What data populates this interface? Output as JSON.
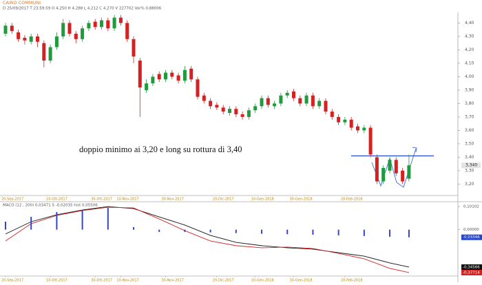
{
  "chart_data": [
    {
      "type": "candlestick",
      "title": "CAIRO COMMUNI",
      "subtitle": "D 25/09/2017  T 23:59:59  O 4,250  H 4,288  L 4,212  C 4,270  V 227702  Var% 0,88006",
      "annotation": "doppio minimo ai 3,20 e long su rottura di 3,40",
      "categories": [
        "20-Sep-2017",
        null,
        null,
        null,
        null,
        null,
        null,
        "10-Ott-2017",
        null,
        null,
        null,
        null,
        null,
        null,
        "30-Ott-2017",
        null,
        null,
        null,
        "10-Nov-2017",
        null,
        null,
        null,
        null,
        null,
        null,
        "30-Nov-2017",
        null,
        null,
        null,
        null,
        null,
        null,
        null,
        "20-Dic-2017",
        null,
        null,
        null,
        null,
        null,
        "10-Gen-2018",
        null,
        null,
        null,
        null,
        null,
        "30-Gen-2018",
        null,
        null,
        null,
        null,
        null,
        null,
        null,
        "20-Feb-2018",
        null,
        null,
        null,
        null,
        null,
        null,
        null,
        null,
        null,
        null
      ],
      "open": [
        4.32,
        4.38,
        4.33,
        4.29,
        4.26,
        4.3,
        4.25,
        4.12,
        4.22,
        4.3,
        4.4,
        4.32,
        4.28,
        4.36,
        4.41,
        4.37,
        4.42,
        4.36,
        4.44,
        4.4,
        4.28,
        4.12,
        3.9,
        3.95,
        4.02,
        3.98,
        4.03,
        4.01,
        3.97,
        4.06,
        3.98,
        3.86,
        3.82,
        3.79,
        3.77,
        3.73,
        3.76,
        3.72,
        3.7,
        3.75,
        3.78,
        3.84,
        3.78,
        3.8,
        3.86,
        3.89,
        3.84,
        3.8,
        3.86,
        3.78,
        3.82,
        3.74,
        3.7,
        3.66,
        3.68,
        3.63,
        3.6,
        3.62,
        3.4,
        3.22,
        3.3,
        3.38,
        3.3,
        3.24
      ],
      "high": [
        4.4,
        4.4,
        4.35,
        4.31,
        4.32,
        4.32,
        4.27,
        4.24,
        4.33,
        4.43,
        4.42,
        4.34,
        4.38,
        4.42,
        4.43,
        4.44,
        4.44,
        4.46,
        4.46,
        4.42,
        4.3,
        4.14,
        3.98,
        4.02,
        4.04,
        4.05,
        4.05,
        4.03,
        4.08,
        4.08,
        4.0,
        3.88,
        3.84,
        3.81,
        3.79,
        3.78,
        3.78,
        3.74,
        3.77,
        3.8,
        3.86,
        3.86,
        3.82,
        3.88,
        3.9,
        3.91,
        3.86,
        3.88,
        3.88,
        3.84,
        3.84,
        3.76,
        3.72,
        3.7,
        3.7,
        3.65,
        3.64,
        3.64,
        3.42,
        3.34,
        3.4,
        3.4,
        3.32,
        3.42
      ],
      "low": [
        4.3,
        4.32,
        4.26,
        4.24,
        4.24,
        4.22,
        4.07,
        4.1,
        4.2,
        4.28,
        4.3,
        4.25,
        4.26,
        4.34,
        4.35,
        4.35,
        4.34,
        4.34,
        4.38,
        4.26,
        4.1,
        3.7,
        3.88,
        3.93,
        3.96,
        3.96,
        3.98,
        3.95,
        3.95,
        3.96,
        3.83,
        3.8,
        3.76,
        3.75,
        3.72,
        3.71,
        3.7,
        3.68,
        3.68,
        3.73,
        3.76,
        3.77,
        3.76,
        3.78,
        3.84,
        3.82,
        3.78,
        3.78,
        3.76,
        3.76,
        3.72,
        3.68,
        3.64,
        3.64,
        3.6,
        3.58,
        3.58,
        3.4,
        3.2,
        3.2,
        3.28,
        3.26,
        3.2,
        3.22
      ],
      "close": [
        4.38,
        4.34,
        4.28,
        4.27,
        4.3,
        4.26,
        4.12,
        4.22,
        4.3,
        4.4,
        4.32,
        4.28,
        4.36,
        4.4,
        4.37,
        4.42,
        4.36,
        4.44,
        4.4,
        4.28,
        4.15,
        3.92,
        3.95,
        4.0,
        3.98,
        4.03,
        4.0,
        3.97,
        4.05,
        3.98,
        3.85,
        3.82,
        3.78,
        3.77,
        3.74,
        3.76,
        3.72,
        3.7,
        3.75,
        3.78,
        3.84,
        3.79,
        3.8,
        3.86,
        3.88,
        3.84,
        3.8,
        3.86,
        3.78,
        3.82,
        3.74,
        3.7,
        3.66,
        3.68,
        3.62,
        3.6,
        3.62,
        3.42,
        3.22,
        3.32,
        3.38,
        3.28,
        3.22,
        3.34
      ],
      "close_labels": [
        null,
        null,
        null,
        null,
        null,
        null,
        null,
        null,
        null,
        null,
        null,
        null,
        null,
        null,
        null,
        null,
        null,
        null,
        null,
        null,
        null,
        null,
        null,
        null,
        null,
        null,
        null,
        null,
        null,
        null,
        null,
        null,
        null,
        null,
        null,
        null,
        null,
        null,
        null,
        null,
        null,
        null,
        null,
        null,
        null,
        null,
        null,
        null,
        null,
        null,
        null,
        null,
        null,
        null,
        null,
        null,
        null,
        null,
        null,
        null,
        null,
        null,
        null,
        "3,340"
      ],
      "up_color": "#1f9a3c",
      "down_color": "#d42222",
      "hlines": [
        {
          "value": 3.41,
          "color": "#2f55d4"
        }
      ],
      "ylim": [
        3.12,
        4.52
      ],
      "yticks": [
        {
          "value": 3.2,
          "label": "3,20"
        },
        {
          "value": 3.3,
          "label": "3,30"
        },
        {
          "value": 3.4,
          "label": "3,40"
        },
        {
          "value": 3.5,
          "label": "3,50"
        },
        {
          "value": 3.6,
          "label": "3,60"
        },
        {
          "value": 3.7,
          "label": "3,70"
        },
        {
          "value": 3.8,
          "label": "3,80"
        },
        {
          "value": 3.9,
          "label": "3,90"
        },
        {
          "value": 4.0,
          "label": "4,00"
        },
        {
          "value": 4.1,
          "label": "4,10"
        },
        {
          "value": 4.2,
          "label": "4,20"
        },
        {
          "value": 4.3,
          "label": "4,30"
        },
        {
          "value": 4.4,
          "label": "4,40"
        }
      ]
    },
    {
      "type": "macd",
      "title": "MACD  (12 , 200)  0,03471   S  -0,02035   hist  0,05506",
      "x": [
        0,
        4,
        8,
        12,
        16,
        20,
        24,
        28,
        32,
        36,
        40,
        44,
        48,
        52,
        56,
        60,
        63
      ],
      "xlim": [
        -0.86,
        70.64
      ],
      "xticks": [
        {
          "value": 0,
          "label": "20-Sep-2017"
        },
        {
          "value": 7,
          "label": "10-Ott-2017"
        },
        {
          "value": 14,
          "label": "30-Ott-2017"
        },
        {
          "value": 18,
          "label": "10-Nov-2017"
        },
        {
          "value": 25,
          "label": "30-Nov-2017"
        },
        {
          "value": 33,
          "label": "20-Dic-2017"
        },
        {
          "value": 39,
          "label": "10-Gen-2018"
        },
        {
          "value": 45,
          "label": "30-Gen-2018"
        },
        {
          "value": 53,
          "label": "20-Feb-2018"
        }
      ],
      "series": [
        {
          "name": "MACD",
          "color": "#111111",
          "values": [
            -0.156,
            -0.086,
            -0.046,
            -0.019,
            0.001,
            -0.011,
            -0.058,
            -0.105,
            -0.164,
            -0.204,
            -0.223,
            -0.235,
            -0.243,
            -0.263,
            -0.283,
            -0.322,
            -0.34566
          ],
          "value_labels": [
            null,
            null,
            null,
            null,
            null,
            null,
            null,
            null,
            null,
            null,
            null,
            null,
            null,
            null,
            null,
            null,
            "-0,34566"
          ]
        },
        {
          "name": "S",
          "color": "#d42222",
          "values": [
            -0.196,
            -0.097,
            -0.05,
            -0.022,
            -0.003,
            -0.007,
            -0.07,
            -0.137,
            -0.196,
            -0.223,
            -0.235,
            -0.231,
            -0.239,
            -0.267,
            -0.298,
            -0.353,
            -0.37714
          ],
          "value_labels": [
            null,
            null,
            null,
            null,
            null,
            null,
            null,
            null,
            null,
            null,
            null,
            null,
            null,
            null,
            null,
            null,
            "-0,37714"
          ]
        },
        {
          "name": "hist",
          "color": "#3344cc",
          "axis": "y2",
          "values": [
            0.035,
            0.056,
            0.077,
            0.086,
            0.095,
            0.011,
            -0.01,
            -0.01,
            -0.012,
            -0.015,
            -0.018,
            -0.02,
            -0.022,
            -0.025,
            -0.028,
            -0.031,
            -0.03346
          ],
          "value_labels": [
            null,
            null,
            null,
            null,
            null,
            null,
            null,
            null,
            null,
            null,
            null,
            null,
            null,
            null,
            null,
            null,
            "-0,03346"
          ]
        }
      ],
      "ylim": [
        -0.393,
        0.013
      ],
      "y2lim": [
        -0.2,
        0.1102
      ],
      "y2ticks": [
        {
          "value": 0.10102,
          "label": "0,10102"
        },
        {
          "value": 0,
          "label": "0,00000"
        }
      ]
    }
  ]
}
